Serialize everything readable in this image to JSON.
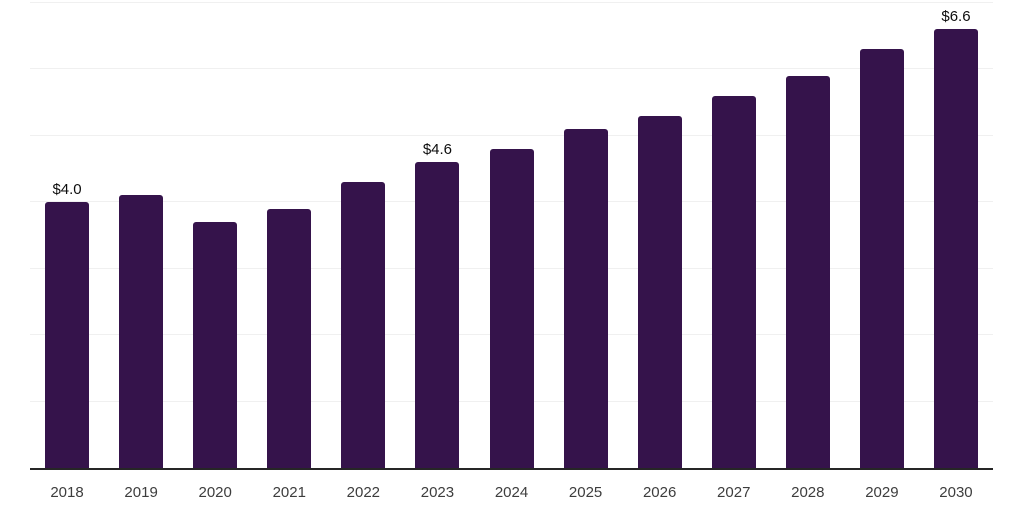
{
  "chart_data": {
    "type": "bar",
    "title": "",
    "xlabel": "",
    "ylabel": "",
    "categories": [
      "2018",
      "2019",
      "2020",
      "2021",
      "2022",
      "2023",
      "2024",
      "2025",
      "2026",
      "2027",
      "2028",
      "2029",
      "2030"
    ],
    "values": [
      4.0,
      4.1,
      3.7,
      3.9,
      4.3,
      4.6,
      4.8,
      5.1,
      5.3,
      5.6,
      5.9,
      6.3,
      6.6
    ],
    "data_labels": {
      "2018": "$4.0",
      "2023": "$4.6",
      "2030": "$6.6"
    },
    "ylim": [
      0,
      7
    ],
    "gridline_step": 1,
    "grid": "horizontal",
    "legend": "none",
    "colors": {
      "bar": "#35134B",
      "gridline": "#f0f0f0",
      "axis_line": "#262626",
      "tick_label": "#3d3d3d",
      "data_label": "#0d0d0d",
      "background": "#ffffff"
    }
  }
}
